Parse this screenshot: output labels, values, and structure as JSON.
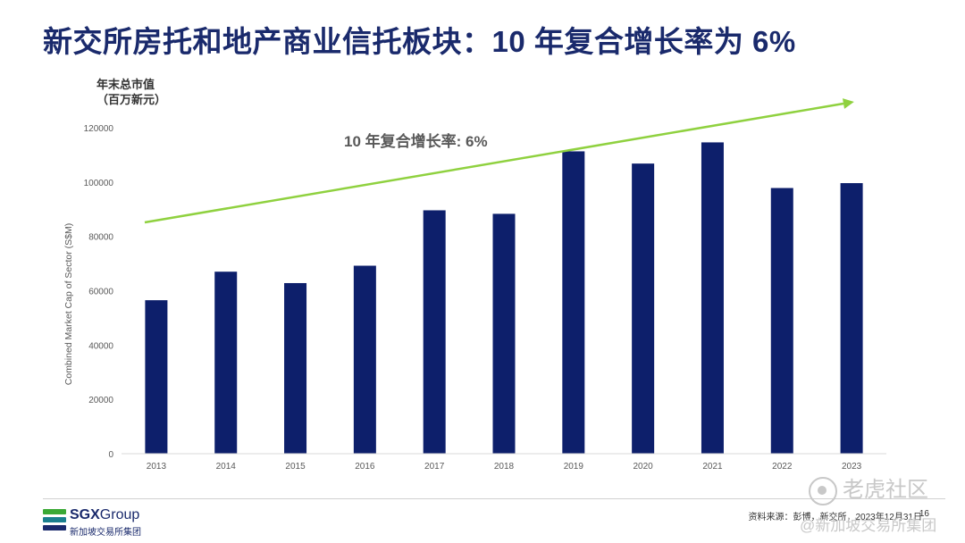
{
  "title": "新交所房托和地产商业信托板块：10 年复合增长率为 6%",
  "y_axis_label_cn": [
    "年末总市值",
    "（百万新元）"
  ],
  "chart_data": {
    "type": "bar",
    "categories": [
      "2013",
      "2014",
      "2015",
      "2016",
      "2017",
      "2018",
      "2019",
      "2020",
      "2021",
      "2022",
      "2023"
    ],
    "values": [
      56500,
      67000,
      62800,
      69200,
      89600,
      88300,
      111300,
      106800,
      114600,
      97800,
      99600
    ],
    "ylabel": "Combined Market Cap of Sector (S$M)",
    "ylim": [
      0,
      120000
    ],
    "yticks": [
      0,
      20000,
      40000,
      60000,
      80000,
      100000,
      120000
    ],
    "annotation": "10 年复合增长率: 6%",
    "bar_color": "#0d1f6b",
    "trend_color": "#8fd13f",
    "grid": false
  },
  "footer": {
    "logo_brand": "SGX",
    "logo_group": "Group",
    "logo_sub": "新加坡交易所集团",
    "source": "资料来源：彭博，新交所，2023年12月31日",
    "page": "16"
  },
  "watermark": {
    "brand": "老虎社区",
    "handle": "@新加坡交易所集团"
  },
  "colors": {
    "title": "#1a2a6c",
    "logo_green": "#3aa935",
    "logo_teal": "#1a7f8e",
    "logo_navy": "#1a2a6c"
  }
}
